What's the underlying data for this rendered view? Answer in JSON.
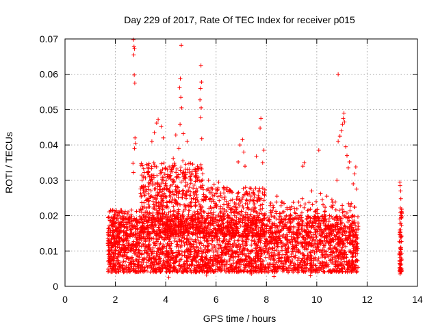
{
  "chart_data": {
    "type": "scatter",
    "title": "Day 229 of 2017, Rate Of TEC Index for receiver p015",
    "xlabel": "GPS time / hours",
    "ylabel": "ROTI / TECUs",
    "xlim": [
      0,
      14
    ],
    "ylim": [
      0,
      0.07
    ],
    "x_ticks": [
      0,
      2,
      4,
      6,
      8,
      10,
      12,
      14
    ],
    "x_tick_labels": [
      "0",
      "2",
      "4",
      "6",
      "8",
      "10",
      "12",
      "14"
    ],
    "y_ticks": [
      0,
      0.01,
      0.02,
      0.03,
      0.04,
      0.05,
      0.06,
      0.07
    ],
    "y_tick_labels": [
      "0",
      "0.01",
      "0.02",
      "0.03",
      "0.04",
      "0.05",
      "0.06",
      "0.07"
    ],
    "grid": true,
    "marker": "+",
    "color": "#ff0000",
    "series": [
      {
        "name": "ROTI",
        "points": [
          [
            2.72,
            0.0698
          ],
          [
            2.74,
            0.0678
          ],
          [
            2.76,
            0.0672
          ],
          [
            2.73,
            0.0655
          ],
          [
            2.75,
            0.0598
          ],
          [
            2.77,
            0.0575
          ],
          [
            4.62,
            0.0682
          ],
          [
            4.58,
            0.0588
          ],
          [
            4.55,
            0.0562
          ],
          [
            4.6,
            0.0535
          ],
          [
            4.63,
            0.0505
          ],
          [
            4.57,
            0.0458
          ],
          [
            5.4,
            0.0625
          ],
          [
            5.42,
            0.0578
          ],
          [
            5.38,
            0.056
          ],
          [
            5.36,
            0.0528
          ],
          [
            5.41,
            0.0505
          ],
          [
            5.39,
            0.0478
          ],
          [
            5.43,
            0.0418
          ],
          [
            3.7,
            0.0472
          ],
          [
            3.64,
            0.0462
          ],
          [
            3.82,
            0.0452
          ],
          [
            3.55,
            0.0435
          ],
          [
            3.9,
            0.042
          ],
          [
            3.45,
            0.041
          ],
          [
            2.78,
            0.042
          ],
          [
            2.8,
            0.0405
          ],
          [
            2.76,
            0.039
          ],
          [
            2.7,
            0.0348
          ],
          [
            2.72,
            0.0322
          ],
          [
            4.4,
            0.0428
          ],
          [
            4.7,
            0.0432
          ],
          [
            4.85,
            0.041
          ],
          [
            4.52,
            0.039
          ],
          [
            4.3,
            0.0362
          ],
          [
            4.68,
            0.0355
          ],
          [
            7.05,
            0.0415
          ],
          [
            6.95,
            0.04
          ],
          [
            7.1,
            0.038
          ],
          [
            6.88,
            0.0352
          ],
          [
            7.15,
            0.034
          ],
          [
            7.78,
            0.0475
          ],
          [
            7.75,
            0.0448
          ],
          [
            7.9,
            0.0385
          ],
          [
            7.6,
            0.0368
          ],
          [
            7.85,
            0.035
          ],
          [
            10.85,
            0.06
          ],
          [
            10.08,
            0.0385
          ],
          [
            9.5,
            0.035
          ],
          [
            9.45,
            0.034
          ],
          [
            11.08,
            0.049
          ],
          [
            11.05,
            0.0475
          ],
          [
            11.1,
            0.0465
          ],
          [
            11.02,
            0.0458
          ],
          [
            10.98,
            0.044
          ],
          [
            10.92,
            0.0425
          ],
          [
            10.85,
            0.041
          ],
          [
            11.15,
            0.0395
          ],
          [
            11.2,
            0.037
          ],
          [
            11.3,
            0.0352
          ],
          [
            11.25,
            0.0335
          ],
          [
            10.8,
            0.03
          ],
          [
            11.55,
            0.0338
          ],
          [
            11.5,
            0.0318
          ],
          [
            11.45,
            0.029
          ],
          [
            11.58,
            0.0275
          ],
          [
            9.42,
            0.0248
          ],
          [
            9.35,
            0.0228
          ],
          [
            10.15,
            0.0262
          ],
          [
            10.22,
            0.0245
          ],
          [
            13.3,
            0.0295
          ],
          [
            13.31,
            0.0285
          ],
          [
            13.33,
            0.027
          ],
          [
            13.34,
            0.0248
          ],
          [
            13.32,
            0.0222
          ],
          [
            13.35,
            0.02
          ],
          [
            13.3,
            0.0178
          ],
          [
            13.33,
            0.016
          ],
          [
            13.36,
            0.014
          ],
          [
            13.31,
            0.0125
          ],
          [
            13.34,
            0.011
          ],
          [
            13.32,
            0.0095
          ],
          [
            13.35,
            0.008
          ],
          [
            13.3,
            0.0065
          ],
          [
            13.33,
            0.0052
          ],
          [
            13.36,
            0.0042
          ],
          [
            13.31,
            0.0035
          ],
          [
            5.7,
            0.03
          ],
          [
            5.92,
            0.0288
          ],
          [
            6.1,
            0.0295
          ],
          [
            6.3,
            0.028
          ],
          [
            6.55,
            0.0272
          ],
          [
            3.15,
            0.0322
          ],
          [
            3.3,
            0.0342
          ],
          [
            3.45,
            0.0315
          ],
          [
            3.98,
            0.0335
          ],
          [
            4.15,
            0.031
          ],
          [
            5.05,
            0.0325
          ],
          [
            5.25,
            0.03
          ],
          [
            8.42,
            0.0255
          ],
          [
            8.7,
            0.0235
          ],
          [
            9.0,
            0.0225
          ],
          [
            9.8,
            0.027
          ],
          [
            10.4,
            0.0255
          ],
          [
            10.6,
            0.0245
          ],
          [
            1.72,
            0.01
          ],
          [
            1.75,
            0.0085
          ],
          [
            1.78,
            0.012
          ],
          [
            1.8,
            0.0145
          ],
          [
            1.74,
            0.0165
          ],
          [
            1.77,
            0.0072
          ],
          [
            8.3,
            0.0028
          ],
          [
            4.12,
            0.0025
          ],
          [
            5.62,
            0.0032
          ],
          [
            9.75,
            0.003
          ],
          [
            7.4,
            0.0035
          ],
          [
            4.7,
            0.004
          ]
        ],
        "dense_bands": [
          {
            "x_range": [
              1.7,
              11.65
            ],
            "y_range": [
              0.004,
              0.02
            ],
            "count": 2800
          },
          {
            "x_range": [
              1.7,
              3.0
            ],
            "y_range": [
              0.01,
              0.022
            ],
            "count": 180
          },
          {
            "x_range": [
              3.0,
              5.5
            ],
            "y_range": [
              0.015,
              0.035
            ],
            "count": 650
          },
          {
            "x_range": [
              5.5,
              7.95
            ],
            "y_range": [
              0.014,
              0.028
            ],
            "count": 420
          },
          {
            "x_range": [
              8.1,
              11.6
            ],
            "y_range": [
              0.012,
              0.024
            ],
            "count": 300
          },
          {
            "x_range": [
              13.28,
              13.38
            ],
            "y_range": [
              0.004,
              0.022
            ],
            "count": 60
          }
        ]
      }
    ]
  }
}
